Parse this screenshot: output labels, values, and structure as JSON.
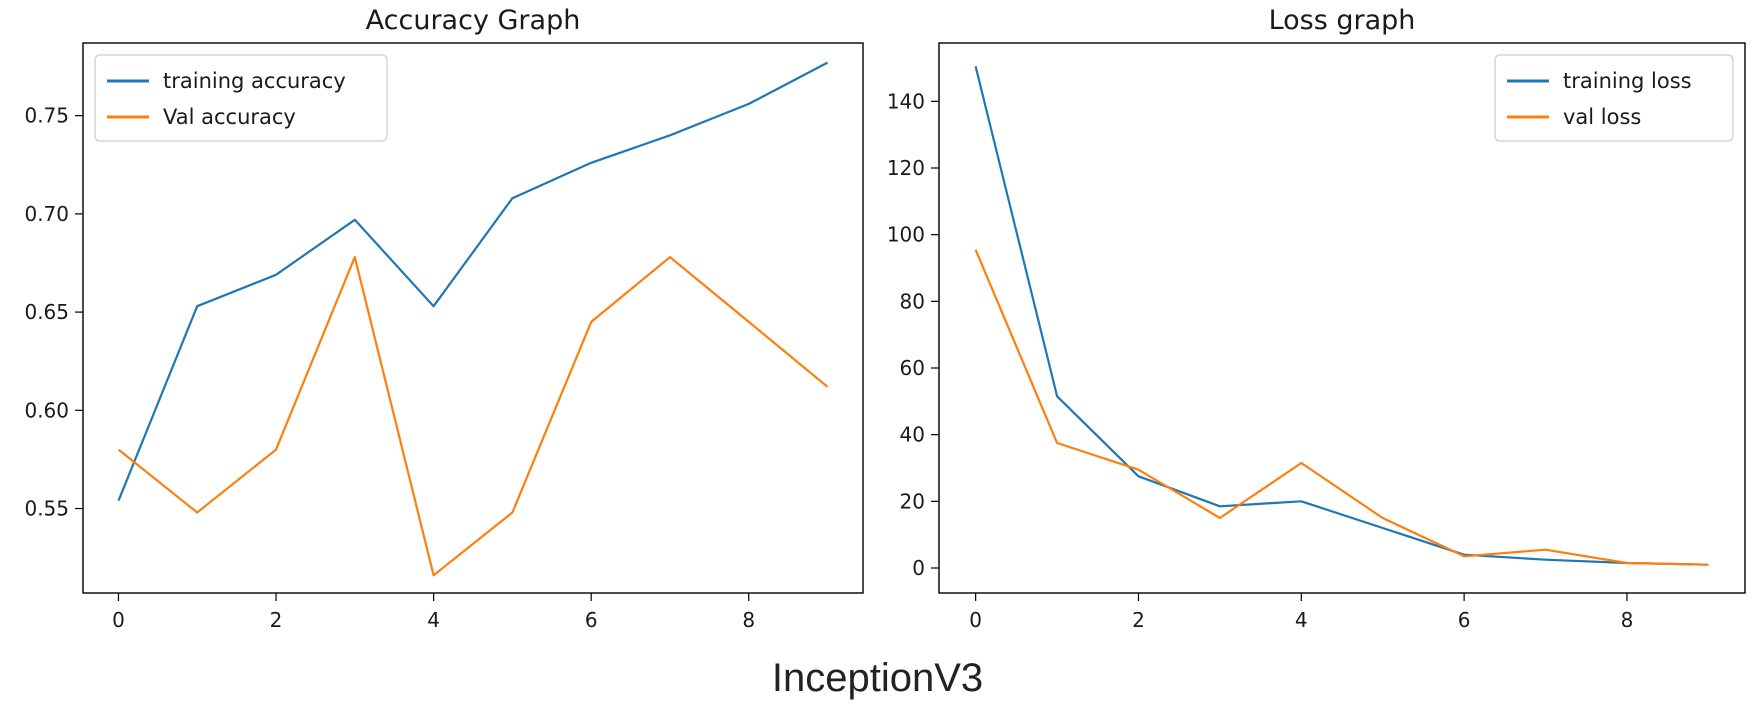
{
  "chart_data": [
    {
      "type": "line",
      "title": "Accuracy Graph",
      "xlabel": "",
      "ylabel": "",
      "x": [
        0,
        1,
        2,
        3,
        4,
        5,
        6,
        7,
        8,
        9
      ],
      "xlim": [
        -0.45,
        9.45
      ],
      "ylim": [
        0.507,
        0.787
      ],
      "xticks": [
        0,
        2,
        4,
        6,
        8
      ],
      "yticks": [
        0.55,
        0.6,
        0.65,
        0.7,
        0.75
      ],
      "ytick_labels": [
        "0.55",
        "0.60",
        "0.65",
        "0.70",
        "0.75"
      ],
      "grid": false,
      "legend_position": "top-left",
      "series": [
        {
          "name": "training accuracy",
          "color": "#1f77b4",
          "values": [
            0.554,
            0.653,
            0.669,
            0.697,
            0.653,
            0.708,
            0.726,
            0.74,
            0.756,
            0.777
          ]
        },
        {
          "name": "Val accuracy",
          "color": "#ff7f0e",
          "values": [
            0.58,
            0.548,
            0.58,
            0.678,
            0.516,
            0.548,
            0.645,
            0.678,
            0.645,
            0.612
          ]
        }
      ]
    },
    {
      "type": "line",
      "title": "Loss graph",
      "xlabel": "",
      "ylabel": "",
      "x": [
        0,
        1,
        2,
        3,
        4,
        5,
        6,
        7,
        8,
        9
      ],
      "xlim": [
        -0.45,
        9.45
      ],
      "ylim": [
        -7.5,
        157.5
      ],
      "xticks": [
        0,
        2,
        4,
        6,
        8
      ],
      "yticks": [
        0,
        20,
        40,
        60,
        80,
        100,
        120,
        140
      ],
      "ytick_labels": [
        "0",
        "20",
        "40",
        "60",
        "80",
        "100",
        "120",
        "140"
      ],
      "grid": false,
      "legend_position": "top-right",
      "series": [
        {
          "name": "training loss",
          "color": "#1f77b4",
          "values": [
            150.5,
            51.5,
            27.5,
            18.5,
            20.0,
            12.0,
            4.0,
            2.5,
            1.5,
            1.0
          ]
        },
        {
          "name": "val loss",
          "color": "#ff7f0e",
          "values": [
            95.5,
            37.5,
            29.5,
            15.0,
            31.5,
            15.0,
            3.5,
            5.5,
            1.5,
            1.0
          ]
        }
      ]
    }
  ],
  "caption": "InceptionV3"
}
